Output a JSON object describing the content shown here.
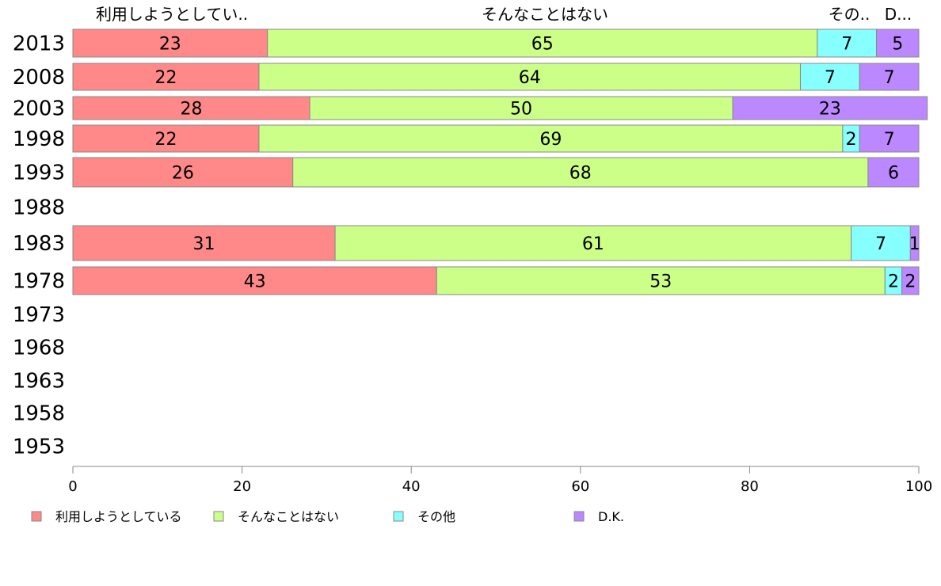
{
  "chart_data": {
    "type": "bar",
    "orientation": "horizontal",
    "stacked": true,
    "categories": [
      "2013",
      "2008",
      "2003",
      "1998",
      "1993",
      "1988",
      "1983",
      "1978",
      "1973",
      "1968",
      "1963",
      "1958",
      "1953"
    ],
    "series": [
      {
        "name": "利用しようとしている",
        "short_label": "利用しようとしてい..",
        "color": "#ff8888",
        "values": [
          23,
          22,
          28,
          22,
          26,
          null,
          31,
          43,
          null,
          null,
          null,
          null,
          null
        ]
      },
      {
        "name": "そんなことはない",
        "short_label": "そんなことはない",
        "color": "#ccff88",
        "values": [
          65,
          64,
          50,
          69,
          68,
          null,
          61,
          53,
          null,
          null,
          null,
          null,
          null
        ]
      },
      {
        "name": "その他",
        "short_label": "その..",
        "color": "#88ffff",
        "values": [
          7,
          7,
          null,
          2,
          null,
          null,
          7,
          2,
          null,
          null,
          null,
          null,
          null
        ]
      },
      {
        "name": "D.K.",
        "short_label": "D...",
        "color": "#bb88ff",
        "values": [
          5,
          7,
          23,
          7,
          6,
          null,
          1,
          2,
          null,
          null,
          null,
          null,
          null
        ]
      }
    ],
    "xlim": [
      0,
      100
    ],
    "xticks": [
      0,
      20,
      40,
      60,
      80,
      100
    ],
    "legend_position": "bottom",
    "grid": false
  }
}
